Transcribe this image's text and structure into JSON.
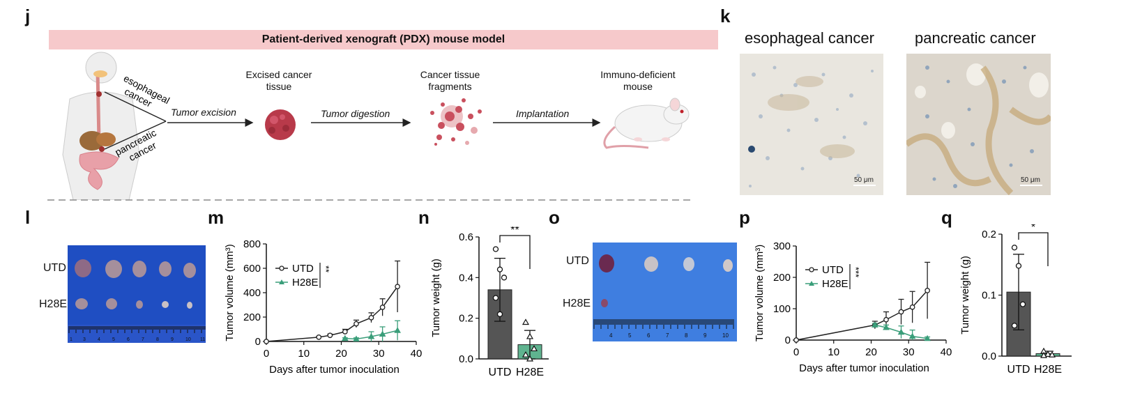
{
  "panels": {
    "j": "j",
    "k": "k",
    "l": "l",
    "m": "m",
    "n": "n",
    "o": "o",
    "p": "p",
    "q": "q"
  },
  "pdx": {
    "banner": "Patient-derived xenograft (PDX) mouse model",
    "esophageal": "esophageal cancer",
    "pancreatic": "pancreatic cancer",
    "steps": [
      "Excised cancer tissue",
      "Cancer tissue fragments",
      "Immuno-deficient mouse"
    ],
    "arrows": [
      "Tumor excision",
      "Tumor digestion",
      "Implantation"
    ]
  },
  "k": {
    "titles": [
      "esophageal cancer",
      "pancreatic cancer"
    ],
    "scalebar": "50 μm"
  },
  "photo_l": {
    "rows": [
      "UTD",
      "H28E"
    ],
    "ruler": [
      "1",
      "3",
      "4",
      "5",
      "6",
      "7",
      "8",
      "9",
      "10",
      "11"
    ]
  },
  "photo_o": {
    "rows": [
      "UTD",
      "H28E"
    ],
    "ruler": [
      "4",
      "5",
      "6",
      "7",
      "8",
      "9",
      "10"
    ]
  },
  "colors": {
    "utd": "#222222",
    "h28e": "#3a9e7a",
    "bar_utd": "#555555",
    "bar_h28e": "#5fb38f",
    "banner": "#f6c9cb"
  },
  "chart_data": [
    {
      "id": "m",
      "type": "line",
      "xlabel": "Days after tumor inoculation",
      "ylabel": "Tumor volume (mm³)",
      "xlim": [
        0,
        40
      ],
      "ylim": [
        0,
        800
      ],
      "xticks": [
        0,
        10,
        20,
        30,
        40
      ],
      "yticks": [
        0,
        200,
        400,
        600,
        800
      ],
      "significance": "**",
      "series": [
        {
          "name": "UTD",
          "x": [
            0,
            14,
            17,
            21,
            24,
            28,
            31,
            35
          ],
          "y": [
            0,
            35,
            50,
            80,
            145,
            195,
            280,
            450
          ],
          "err": [
            0,
            5,
            10,
            20,
            30,
            40,
            70,
            210
          ]
        },
        {
          "name": "H28E",
          "x": [
            21,
            24,
            28,
            31,
            35
          ],
          "y": [
            25,
            20,
            40,
            60,
            90
          ],
          "err": [
            5,
            10,
            40,
            60,
            80
          ]
        }
      ]
    },
    {
      "id": "n",
      "type": "bar",
      "ylabel": "Tumor weight (g)",
      "ylim": [
        0,
        0.6
      ],
      "yticks": [
        "0.0",
        "0.2",
        "0.4",
        "0.6"
      ],
      "categories": [
        "UTD",
        "H28E"
      ],
      "values": [
        0.34,
        0.07
      ],
      "err": [
        0.155,
        0.07
      ],
      "points": [
        [
          0.54,
          0.44,
          0.4,
          0.3,
          0.22
        ],
        [
          0.18,
          0.11,
          0.05,
          0.02,
          0.0
        ]
      ],
      "significance": "**"
    },
    {
      "id": "p",
      "type": "line",
      "xlabel": "Days after tumor inoculation",
      "ylabel": "Tumor volume (mm³)",
      "xlim": [
        0,
        40
      ],
      "ylim": [
        0,
        300
      ],
      "xticks": [
        0,
        10,
        20,
        30,
        40
      ],
      "yticks": [
        0,
        100,
        200,
        300
      ],
      "significance": "***",
      "series": [
        {
          "name": "UTD",
          "x": [
            0,
            21,
            24,
            28,
            31,
            35
          ],
          "y": [
            0,
            48,
            65,
            90,
            105,
            158
          ],
          "err": [
            0,
            12,
            25,
            40,
            50,
            90
          ]
        },
        {
          "name": "H28E",
          "x": [
            21,
            24,
            28,
            31,
            35
          ],
          "y": [
            48,
            40,
            25,
            12,
            5
          ],
          "err": [
            5,
            8,
            20,
            20,
            5
          ]
        }
      ]
    },
    {
      "id": "q",
      "type": "bar",
      "ylabel": "Tumor weight (g)",
      "ylim": [
        0,
        0.2
      ],
      "yticks": [
        "0.0",
        "0.1",
        "0.2"
      ],
      "categories": [
        "UTD",
        "H28E"
      ],
      "values": [
        0.105,
        0.004
      ],
      "err": [
        0.062,
        0.004
      ],
      "points": [
        [
          0.178,
          0.148,
          0.085,
          0.05
        ],
        [
          0.008,
          0.003,
          0.002,
          0.001
        ]
      ],
      "significance": "*"
    }
  ]
}
